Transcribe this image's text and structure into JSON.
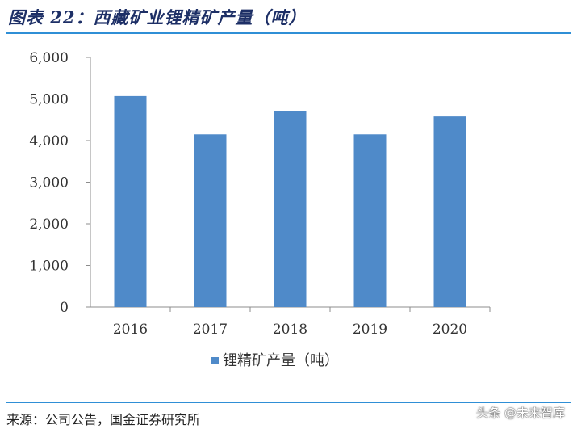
{
  "title": "图表 22：西藏矿业锂精矿产量（吨）",
  "source": "来源：公司公告，国金证券研究所",
  "watermark": "头条 @未来智库",
  "colors": {
    "bar": "#4f8ac9",
    "axis": "#8c8c8c",
    "title": "#1d2f66",
    "rule": "#2f8fd6"
  },
  "chart_data": {
    "type": "bar",
    "categories": [
      "2016",
      "2017",
      "2018",
      "2019",
      "2020"
    ],
    "series": [
      {
        "name": "锂精矿产量（吨）",
        "values": [
          5070,
          4150,
          4700,
          4150,
          4580
        ]
      }
    ],
    "y_ticks": [
      "0",
      "1,000",
      "2,000",
      "3,000",
      "4,000",
      "5,000",
      "6,000"
    ],
    "ylim": [
      0,
      6000
    ],
    "grid": false,
    "legend": "bottom"
  }
}
